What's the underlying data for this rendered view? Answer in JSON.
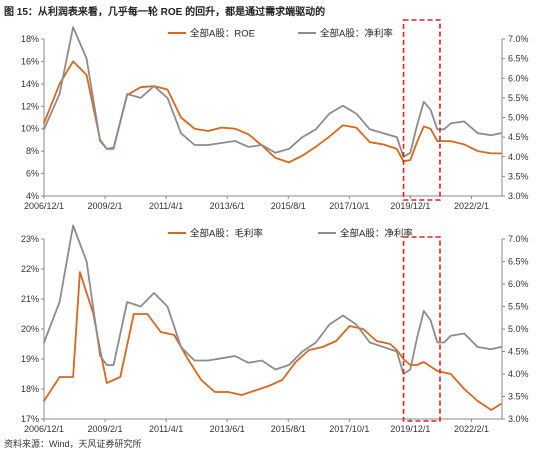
{
  "figure_title": "图 15：从利润表来看，几乎每一轮 ROE 的回升，都是通过需求端驱动的",
  "source_note": "资料来源：Wind，天风证券研究所",
  "colors": {
    "orange": "#d9661f",
    "gray": "#8c8c8c",
    "highlight": "#e02020"
  },
  "chart_data": [
    {
      "type": "line",
      "x_ticks": [
        "2006/12/1",
        "2009/2/1",
        "2011/4/1",
        "2013/6/1",
        "2015/8/1",
        "2017/10/1",
        "2019/12/1",
        "2022/2/1"
      ],
      "left_axis": {
        "ylim": [
          4,
          18
        ],
        "ticks": [
          "4%",
          "6%",
          "8%",
          "10%",
          "12%",
          "14%",
          "16%",
          "18%"
        ]
      },
      "right_axis": {
        "ylim": [
          3.0,
          7.0
        ],
        "ticks": [
          "3.0%",
          "3.5%",
          "4.0%",
          "4.5%",
          "5.0%",
          "5.5%",
          "6.0%",
          "6.5%",
          "7.0%"
        ]
      },
      "x_range": [
        2006.92,
        2023.9
      ],
      "series": [
        {
          "name": "全部A股：ROE",
          "color": "orange",
          "axis": "left",
          "x": [
            2006.92,
            2007.5,
            2008.0,
            2008.5,
            2009.0,
            2009.25,
            2009.5,
            2010.0,
            2010.5,
            2011.0,
            2011.5,
            2012.0,
            2012.5,
            2013.0,
            2013.5,
            2014.0,
            2014.5,
            2015.0,
            2015.5,
            2016.0,
            2016.5,
            2017.0,
            2017.5,
            2018.0,
            2018.5,
            2019.0,
            2019.5,
            2020.0,
            2020.25,
            2020.5,
            2020.75,
            2021.0,
            2021.25,
            2021.5,
            2021.75,
            2022.0,
            2022.5,
            2023.0,
            2023.5,
            2023.85
          ],
          "values": [
            10.5,
            14.0,
            16.0,
            14.8,
            9.0,
            8.2,
            8.3,
            13.0,
            13.7,
            13.8,
            13.5,
            11.0,
            10.0,
            9.8,
            10.1,
            10.0,
            9.5,
            8.5,
            7.4,
            7.0,
            7.6,
            8.4,
            9.3,
            10.3,
            10.1,
            8.8,
            8.6,
            8.2,
            7.1,
            7.2,
            8.8,
            10.2,
            10.0,
            8.9,
            8.9,
            8.9,
            8.6,
            8.0,
            7.8,
            7.8
          ]
        },
        {
          "name": "全部A股：净利率",
          "color": "gray",
          "axis": "right",
          "x": [
            2006.92,
            2007.5,
            2008.0,
            2008.5,
            2009.0,
            2009.25,
            2009.5,
            2010.0,
            2010.5,
            2011.0,
            2011.5,
            2012.0,
            2012.5,
            2013.0,
            2013.5,
            2014.0,
            2014.5,
            2015.0,
            2015.5,
            2016.0,
            2016.5,
            2017.0,
            2017.5,
            2018.0,
            2018.5,
            2019.0,
            2019.5,
            2020.0,
            2020.25,
            2020.5,
            2020.75,
            2021.0,
            2021.25,
            2021.5,
            2021.75,
            2022.0,
            2022.5,
            2023.0,
            2023.5,
            2023.85
          ],
          "values": [
            4.7,
            5.6,
            7.3,
            6.5,
            4.4,
            4.2,
            4.2,
            5.6,
            5.5,
            5.8,
            5.5,
            4.6,
            4.3,
            4.3,
            4.35,
            4.4,
            4.25,
            4.3,
            4.1,
            4.2,
            4.5,
            4.7,
            5.1,
            5.3,
            5.1,
            4.7,
            4.6,
            4.5,
            4.0,
            4.1,
            4.8,
            5.4,
            5.2,
            4.7,
            4.7,
            4.85,
            4.9,
            4.6,
            4.55,
            4.6
          ]
        }
      ]
    },
    {
      "type": "line",
      "x_ticks": [
        "2006/12/1",
        "2009/2/1",
        "2011/4/1",
        "2013/6/1",
        "2015/8/1",
        "2017/10/1",
        "2019/12/1",
        "2022/2/1"
      ],
      "left_axis": {
        "ylim": [
          17,
          23
        ],
        "ticks": [
          "17%",
          "18%",
          "19%",
          "20%",
          "21%",
          "22%",
          "23%"
        ]
      },
      "right_axis": {
        "ylim": [
          3.0,
          7.0
        ],
        "ticks": [
          "3.0%",
          "3.5%",
          "4.0%",
          "4.5%",
          "5.0%",
          "5.5%",
          "6.0%",
          "6.5%",
          "7.0%"
        ]
      },
      "x_range": [
        2006.92,
        2023.9
      ],
      "series": [
        {
          "name": "全部A股：毛利率",
          "color": "orange",
          "axis": "left",
          "x": [
            2006.92,
            2007.5,
            2008.0,
            2008.25,
            2008.75,
            2009.0,
            2009.25,
            2009.75,
            2010.25,
            2010.75,
            2011.25,
            2011.75,
            2012.25,
            2012.75,
            2013.25,
            2013.75,
            2014.25,
            2014.75,
            2015.25,
            2015.75,
            2016.25,
            2016.75,
            2017.25,
            2017.75,
            2018.25,
            2018.75,
            2019.25,
            2019.75,
            2020.0,
            2020.25,
            2020.5,
            2020.75,
            2021.0,
            2021.5,
            2022.0,
            2022.5,
            2023.0,
            2023.5,
            2023.85
          ],
          "values": [
            17.6,
            18.4,
            18.4,
            21.9,
            20.5,
            19.3,
            18.2,
            18.4,
            20.5,
            20.5,
            19.9,
            19.8,
            19.0,
            18.3,
            17.9,
            17.9,
            17.8,
            17.95,
            18.1,
            18.3,
            18.9,
            19.3,
            19.4,
            19.6,
            20.1,
            20.0,
            19.6,
            19.5,
            19.3,
            19.0,
            18.8,
            18.8,
            18.9,
            18.6,
            18.5,
            18.0,
            17.6,
            17.3,
            17.5
          ]
        },
        {
          "name": "全部A股：净利率",
          "color": "gray",
          "axis": "right",
          "x": [
            2006.92,
            2007.5,
            2008.0,
            2008.5,
            2009.0,
            2009.25,
            2009.5,
            2010.0,
            2010.5,
            2011.0,
            2011.5,
            2012.0,
            2012.5,
            2013.0,
            2013.5,
            2014.0,
            2014.5,
            2015.0,
            2015.5,
            2016.0,
            2016.5,
            2017.0,
            2017.5,
            2018.0,
            2018.5,
            2019.0,
            2019.5,
            2020.0,
            2020.25,
            2020.5,
            2020.75,
            2021.0,
            2021.25,
            2021.5,
            2021.75,
            2022.0,
            2022.5,
            2023.0,
            2023.5,
            2023.85
          ],
          "values": [
            4.7,
            5.6,
            7.3,
            6.5,
            4.4,
            4.2,
            4.2,
            5.6,
            5.5,
            5.8,
            5.5,
            4.6,
            4.3,
            4.3,
            4.35,
            4.4,
            4.25,
            4.3,
            4.1,
            4.2,
            4.5,
            4.7,
            5.1,
            5.3,
            5.1,
            4.7,
            4.6,
            4.5,
            4.0,
            4.1,
            4.8,
            5.4,
            5.2,
            4.7,
            4.7,
            4.85,
            4.9,
            4.6,
            4.55,
            4.6
          ]
        }
      ]
    }
  ],
  "highlight": {
    "x_start": 2020.25,
    "x_end": 2021.6
  }
}
